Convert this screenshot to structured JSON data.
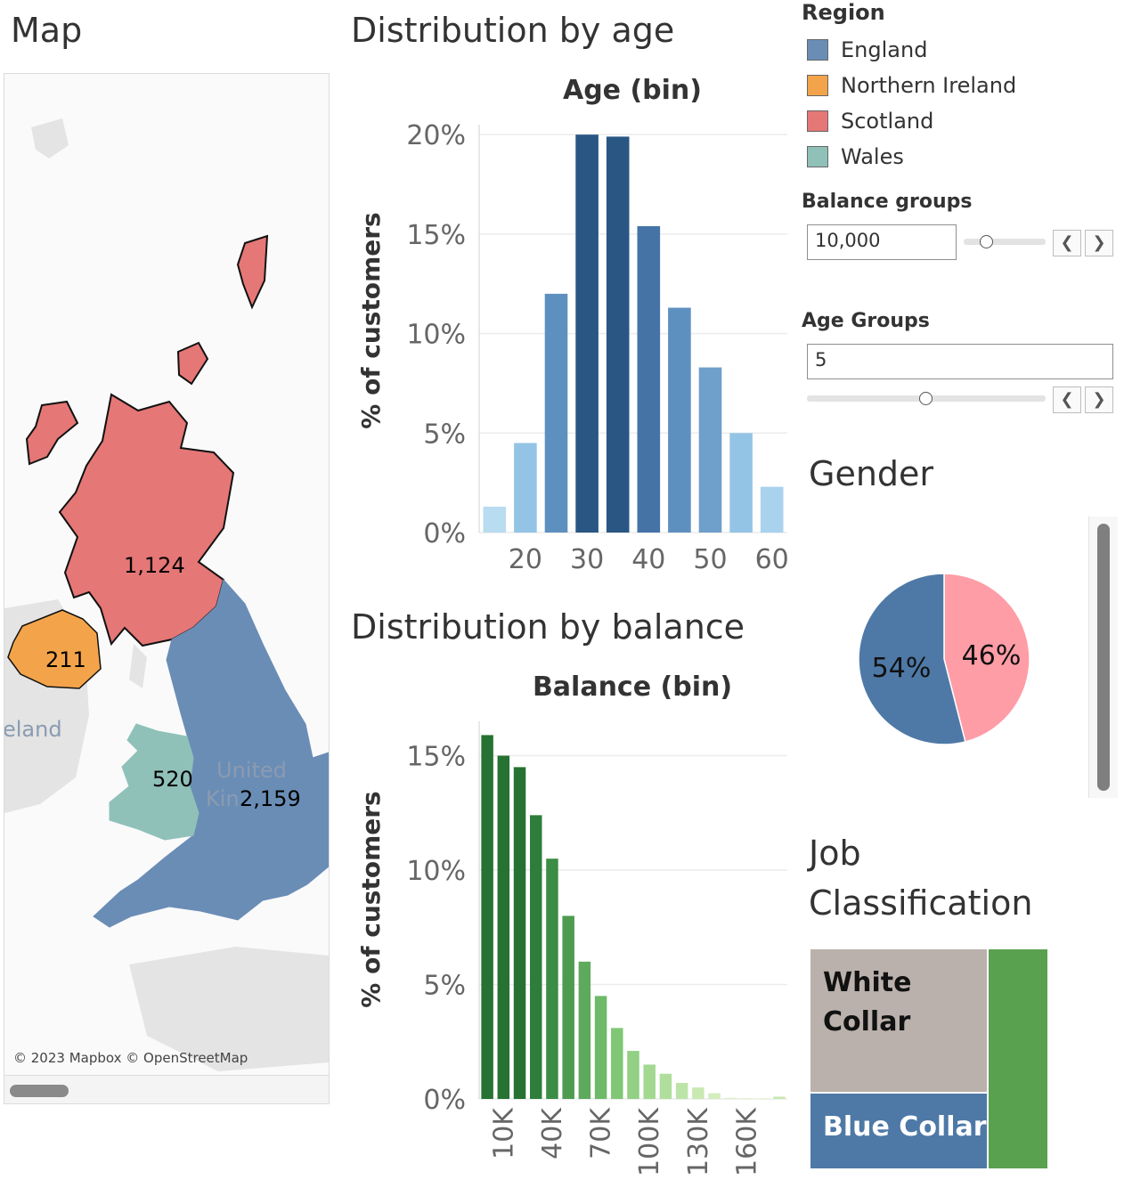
{
  "map": {
    "title": "Map",
    "attribution": "© 2023 Mapbox © OpenStreetMap",
    "labels": {
      "scotland": "1,124",
      "northern_ireland": "211",
      "wales": "520",
      "england": "2,159",
      "ireland_basemap": "eland",
      "uk_basemap_line1": "United",
      "uk_basemap_line2": "Kin"
    },
    "colors": {
      "england": "#6a8db6",
      "northern_ireland": "#f3a44a",
      "scotland": "#e57776",
      "wales": "#8fc1b9"
    }
  },
  "age_section": {
    "title": "Distribution by age"
  },
  "balance_section": {
    "title": "Distribution by balance"
  },
  "legend": {
    "title": "Region",
    "items": [
      {
        "label": "England",
        "color": "#6a8db6"
      },
      {
        "label": "Northern Ireland",
        "color": "#f3a44a"
      },
      {
        "label": "Scotland",
        "color": "#e57776"
      },
      {
        "label": "Wales",
        "color": "#8fc1b9"
      }
    ]
  },
  "balance_groups": {
    "label": "Balance groups",
    "value": "10,000",
    "prev_icon": "chevron-left-icon",
    "next_icon": "chevron-right-icon"
  },
  "age_groups": {
    "label": "Age Groups",
    "value": "5",
    "prev_icon": "chevron-left-icon",
    "next_icon": "chevron-right-icon"
  },
  "gender_section": {
    "title": "Gender"
  },
  "job_section": {
    "title_line1": "Job",
    "title_line2": "Classification"
  },
  "chart_data": [
    {
      "id": "age",
      "type": "bar",
      "title": "Age (bin)",
      "xlabel": "",
      "ylabel": "% of customers",
      "x_ticks": [
        "20",
        "30",
        "40",
        "50",
        "60"
      ],
      "y_ticks": [
        "20%",
        "15%",
        "10%",
        "5%",
        "0%"
      ],
      "ylim": [
        0,
        20.5
      ],
      "bins": [
        15,
        20,
        25,
        30,
        35,
        40,
        45,
        50,
        55,
        60
      ],
      "values": [
        1.3,
        4.5,
        12.0,
        20.0,
        19.9,
        15.4,
        11.3,
        8.3,
        5.0,
        2.3
      ],
      "colors": [
        "#b8dcf0",
        "#94c4e5",
        "#5e90bf",
        "#2a5684",
        "#2a5684",
        "#4573a6",
        "#5e90bf",
        "#6f9fcb",
        "#94c4e5",
        "#a9d2ee"
      ],
      "grid": true
    },
    {
      "id": "balance",
      "type": "bar",
      "title": "Balance (bin)",
      "xlabel": "",
      "ylabel": "% of customers",
      "x_ticks": [
        "10K",
        "40K",
        "70K",
        "100K",
        "130K",
        "160K"
      ],
      "y_ticks": [
        "15%",
        "10%",
        "5%",
        "0%"
      ],
      "ylim": [
        0,
        16.5
      ],
      "bins": [
        0,
        10000,
        20000,
        30000,
        40000,
        50000,
        60000,
        70000,
        80000,
        90000,
        100000,
        110000,
        120000,
        130000,
        140000,
        150000,
        160000,
        170000,
        180000
      ],
      "values": [
        15.9,
        15.0,
        14.5,
        12.4,
        10.5,
        8.0,
        6.0,
        4.5,
        3.1,
        2.1,
        1.5,
        1.1,
        0.7,
        0.5,
        0.25,
        0.05,
        0.03,
        0.02,
        0.1
      ],
      "colors": [
        "#267232",
        "#267232",
        "#267232",
        "#2f7d3a",
        "#3b8c44",
        "#4e9b4f",
        "#5eaa5c",
        "#6dba68",
        "#80c775",
        "#92d084",
        "#a2d890",
        "#b0de9c",
        "#bde4a8",
        "#c8e9b2",
        "#d3edbd",
        "#dcf1c6",
        "#dcf1c6",
        "#dcf1c6",
        "#c8e9b2"
      ],
      "grid": true
    },
    {
      "id": "gender",
      "type": "pie",
      "slices": [
        {
          "label": "54%",
          "value": 54,
          "color": "#4e79a7"
        },
        {
          "label": "46%",
          "value": 46,
          "color": "#ff9da7"
        }
      ]
    },
    {
      "id": "job",
      "type": "treemap",
      "tiles": [
        {
          "label_line1": "White",
          "label_line2": "Collar",
          "color": "#bab0ac",
          "text_color": "#111111"
        },
        {
          "label_line1": "Blue Collar",
          "label_line2": "",
          "color": "#4e79a7",
          "text_color": "#ffffff"
        },
        {
          "label_line1": "",
          "label_line2": "",
          "color": "#59a14f",
          "text_color": "#ffffff"
        }
      ]
    }
  ]
}
